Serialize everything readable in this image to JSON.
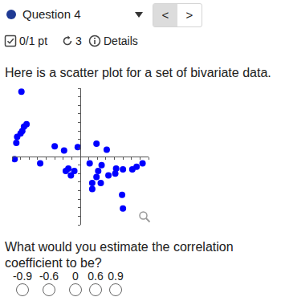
{
  "header": {
    "question": "Question 4",
    "prev": "<",
    "next": ">"
  },
  "status": {
    "score": "0/1 pt",
    "attempts": "3",
    "details": "Details"
  },
  "prompt": "Here is a scatter plot for a set of bivariate data.",
  "chart_data": {
    "type": "scatter",
    "color": "#0000ff",
    "marker": "circle",
    "x": [
      -6.9,
      -6.6,
      -6.3,
      -6.8,
      -7.4,
      -7.0,
      -7.5,
      -7.7,
      -4.7,
      -3.0,
      -1.9,
      -0.3,
      1.9,
      3.1,
      -1.4,
      -0.7,
      -1.7,
      -1.1,
      1.1,
      2.5,
      2.1,
      1.4,
      2.4,
      1.9,
      3.3,
      4.1,
      5.0,
      4.2,
      6.6,
      7.3,
      6.1,
      4.9,
      5.0,
      1.4
    ],
    "values": [
      7.6,
      3.5,
      3.8,
      3.0,
      2.3,
      2.7,
      1.6,
      -0.3,
      -0.8,
      1.2,
      0.7,
      1.1,
      1.5,
      0.8,
      -1.4,
      -1.7,
      -1.7,
      -2.2,
      -0.8,
      -1.0,
      -1.7,
      -3.1,
      -3.1,
      -2.4,
      -2.2,
      -2.0,
      -1.5,
      -1.4,
      -1.2,
      -0.8,
      -1.5,
      -4.5,
      -6.1,
      -3.8
    ],
    "xlim": [
      -8,
      8
    ],
    "ylim": [
      -8,
      8
    ],
    "xticks": [
      -8,
      -7,
      -6,
      -5,
      -4,
      -3,
      -2,
      -1,
      0,
      1,
      2,
      3,
      4,
      5,
      6,
      7,
      8
    ],
    "yticks": [
      -8,
      -7,
      -6,
      -5,
      -4,
      -3,
      -2,
      -1,
      0,
      1,
      2,
      3,
      4,
      5,
      6,
      7,
      8
    ],
    "grid": false,
    "tick_labels": false
  },
  "question": "What would you estimate the correlation coefficient to be?",
  "options": [
    "-0.9",
    "-0.6",
    "0",
    "0.6",
    "0.9"
  ]
}
